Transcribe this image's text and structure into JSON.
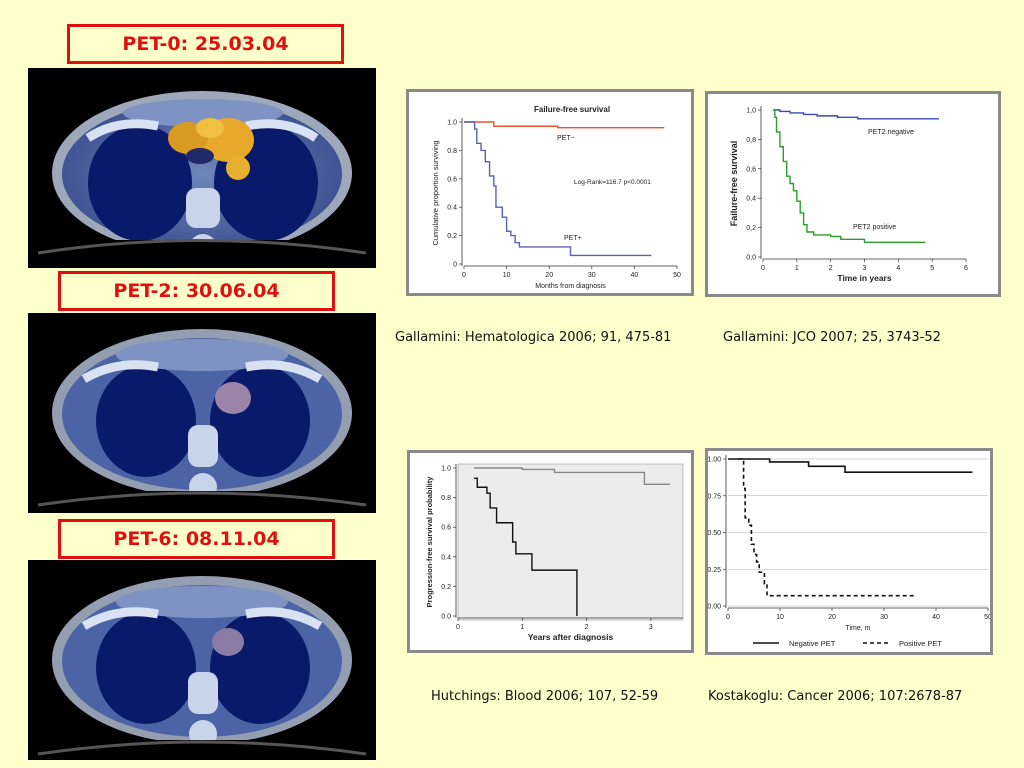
{
  "pet_scans": [
    {
      "label": "PET-0: 25.03.04",
      "uptake": "high"
    },
    {
      "label": "PET-2: 30.06.04",
      "uptake": "low"
    },
    {
      "label": "PET-6: 08.11.04",
      "uptake": "low"
    }
  ],
  "colors": {
    "label_border": "#e01010",
    "panel_border": "#8a8a8a",
    "background": "#ffffcc"
  },
  "chart_data": [
    {
      "type": "line",
      "title": "Failure-free survival",
      "xlabel": "Months from diagnosis",
      "ylabel": "Cumulative proportion surviving",
      "xlim": [
        0,
        50
      ],
      "ylim": [
        0,
        1.0
      ],
      "x_ticks": [
        "0",
        "10",
        "20",
        "30",
        "40",
        "50"
      ],
      "y_ticks": [
        "0",
        "0.2",
        "0.4",
        "0.6",
        "0.8",
        "1.0"
      ],
      "annotation": "Log-Rank=116.7 p<0.0001",
      "citation": "Gallamini: Hematologica 2006; 91, 475-81",
      "series": [
        {
          "name": "PET−",
          "color": "#e8532b",
          "style": "step",
          "points": [
            [
              0,
              1.0
            ],
            [
              5,
              1.0
            ],
            [
              7,
              0.97
            ],
            [
              20,
              0.97
            ],
            [
              22,
              0.96
            ],
            [
              47,
              0.96
            ]
          ]
        },
        {
          "name": "PET+",
          "color": "#5a63b0",
          "style": "step",
          "points": [
            [
              0,
              1.0
            ],
            [
              2.5,
              0.95
            ],
            [
              3,
              0.85
            ],
            [
              4,
              0.8
            ],
            [
              5,
              0.72
            ],
            [
              6,
              0.62
            ],
            [
              7,
              0.55
            ],
            [
              7.5,
              0.4
            ],
            [
              9,
              0.33
            ],
            [
              10,
              0.23
            ],
            [
              11,
              0.2
            ],
            [
              12,
              0.15
            ],
            [
              13,
              0.12
            ],
            [
              16,
              0.12
            ],
            [
              25,
              0.06
            ],
            [
              44,
              0.06
            ]
          ]
        }
      ]
    },
    {
      "type": "line",
      "xlabel": "Time in years",
      "ylabel": "Failure-free survival",
      "xlim": [
        0,
        6
      ],
      "ylim": [
        0,
        1.0
      ],
      "x_ticks": [
        "0",
        "1",
        "2",
        "3",
        "4",
        "5",
        "6"
      ],
      "y_ticks": [
        "0,0",
        "0,2",
        "0,4",
        "0,6",
        "0,8",
        "1,0"
      ],
      "citation": "Gallamini: JCO 2007; 25, 3743-52",
      "series": [
        {
          "name": "PET2 negative",
          "color": "#3a48b0",
          "style": "step",
          "points": [
            [
              0.3,
              1.0
            ],
            [
              0.5,
              0.99
            ],
            [
              0.8,
              0.98
            ],
            [
              1.2,
              0.97
            ],
            [
              1.6,
              0.96
            ],
            [
              2.2,
              0.95
            ],
            [
              2.8,
              0.94
            ],
            [
              3.5,
              0.94
            ],
            [
              4.3,
              0.94
            ],
            [
              5.2,
              0.94
            ]
          ]
        },
        {
          "name": "PET2 positive",
          "color": "#2aa02a",
          "style": "step",
          "points": [
            [
              0.3,
              1.0
            ],
            [
              0.35,
              0.95
            ],
            [
              0.4,
              0.85
            ],
            [
              0.5,
              0.75
            ],
            [
              0.6,
              0.65
            ],
            [
              0.7,
              0.55
            ],
            [
              0.8,
              0.5
            ],
            [
              0.9,
              0.45
            ],
            [
              1.0,
              0.38
            ],
            [
              1.1,
              0.3
            ],
            [
              1.2,
              0.22
            ],
            [
              1.3,
              0.17
            ],
            [
              1.5,
              0.15
            ],
            [
              2.0,
              0.14
            ],
            [
              2.3,
              0.12
            ],
            [
              3.0,
              0.1
            ],
            [
              4.8,
              0.1
            ]
          ]
        }
      ]
    },
    {
      "type": "line",
      "xlabel": "Years after diagnosis",
      "ylabel": "Progression-free survival probability",
      "xlim": [
        0,
        3.5
      ],
      "ylim": [
        0,
        1.0
      ],
      "x_ticks": [
        "0",
        "1",
        "2",
        "3"
      ],
      "y_ticks": [
        "0.0",
        "0.2",
        "0.4",
        "0.6",
        "0.8",
        "1.0"
      ],
      "citation": "Hutchings: Blood 2006; 107, 52-59",
      "series": [
        {
          "name": "",
          "color": "#888888",
          "style": "step",
          "points": [
            [
              0.25,
              1.0
            ],
            [
              1.0,
              0.99
            ],
            [
              1.5,
              0.97
            ],
            [
              2.0,
              0.97
            ],
            [
              2.85,
              0.97
            ],
            [
              2.9,
              0.89
            ],
            [
              3.3,
              0.89
            ]
          ]
        },
        {
          "name": "",
          "color": "#111111",
          "style": "step",
          "points": [
            [
              0.25,
              0.93
            ],
            [
              0.3,
              0.87
            ],
            [
              0.45,
              0.83
            ],
            [
              0.5,
              0.73
            ],
            [
              0.6,
              0.63
            ],
            [
              0.8,
              0.63
            ],
            [
              0.85,
              0.5
            ],
            [
              0.9,
              0.42
            ],
            [
              1.1,
              0.42
            ],
            [
              1.15,
              0.31
            ],
            [
              1.55,
              0.31
            ],
            [
              1.55,
              0.31
            ],
            [
              1.85,
              0.31
            ],
            [
              1.85,
              0.0
            ]
          ]
        }
      ]
    },
    {
      "type": "line",
      "xlabel": "Time, m",
      "ylabel": "",
      "xlim": [
        0,
        50
      ],
      "ylim": [
        0,
        1.0
      ],
      "x_ticks": [
        "0",
        "10",
        "20",
        "30",
        "40",
        "50"
      ],
      "y_ticks": [
        "0.00",
        "0.25",
        "0.50",
        "0.75",
        "1.00"
      ],
      "legend": [
        "Negative PET",
        "Positive PET"
      ],
      "citation": "Kostakoglu: Cancer 2006; 107:2678-87",
      "series": [
        {
          "name": "Negative PET",
          "color": "#111111",
          "style": "step",
          "points": [
            [
              0,
              1.0
            ],
            [
              7,
              1.0
            ],
            [
              8,
              0.98
            ],
            [
              15,
              0.98
            ],
            [
              15.5,
              0.95
            ],
            [
              22,
              0.95
            ],
            [
              22.5,
              0.91
            ],
            [
              47,
              0.91
            ]
          ]
        },
        {
          "name": "Positive PET",
          "color": "#111111",
          "style": "dash",
          "points": [
            [
              2,
              1.0
            ],
            [
              3,
              0.8
            ],
            [
              3.3,
              0.6
            ],
            [
              4,
              0.55
            ],
            [
              4.5,
              0.42
            ],
            [
              5,
              0.35
            ],
            [
              5.5,
              0.3
            ],
            [
              6,
              0.23
            ],
            [
              7,
              0.15
            ],
            [
              7.5,
              0.07
            ],
            [
              36,
              0.07
            ]
          ]
        }
      ]
    }
  ]
}
